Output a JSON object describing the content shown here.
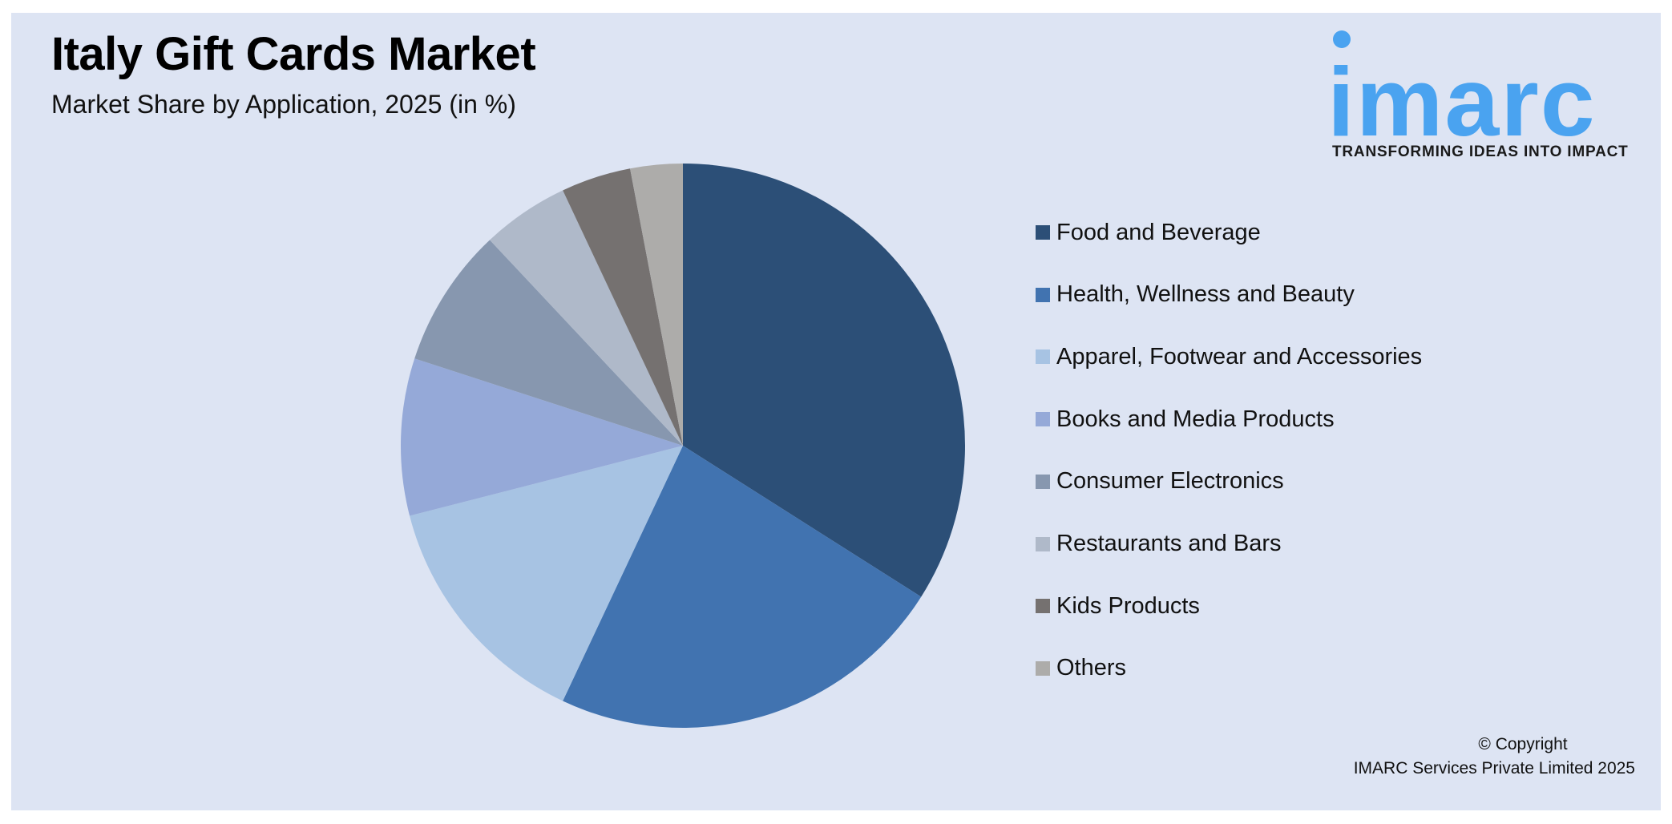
{
  "header": {
    "title": "Italy Gift Cards Market",
    "subtitle": "Market Share by Application, 2025 (in %)"
  },
  "logo": {
    "name": "imarc",
    "tagline": "TRANSFORMING IDEAS INTO IMPACT",
    "color": "#4aa3f0"
  },
  "footer": {
    "copyright_line1": "© Copyright",
    "copyright_line2": "IMARC Services Private Limited 2025"
  },
  "chart_data": {
    "type": "pie",
    "title": "Italy Gift Cards Market",
    "subtitle": "Market Share by Application, 2025 (in %)",
    "start_angle": "12 o'clock, clockwise",
    "legend_position": "right",
    "categories": [
      "Food and Beverage",
      "Health, Wellness and Beauty",
      "Apparel, Footwear and Accessories",
      "Books and Media Products",
      "Consumer Electronics",
      "Restaurants and Bars",
      "Kids Products",
      "Others"
    ],
    "values": [
      34,
      23,
      14,
      9,
      8,
      5,
      4,
      3
    ],
    "colors": [
      "#2c4f77",
      "#4173b0",
      "#a7c3e3",
      "#95a9d8",
      "#8797af",
      "#afb9c9",
      "#757170",
      "#adacaa"
    ],
    "unit": "%"
  }
}
